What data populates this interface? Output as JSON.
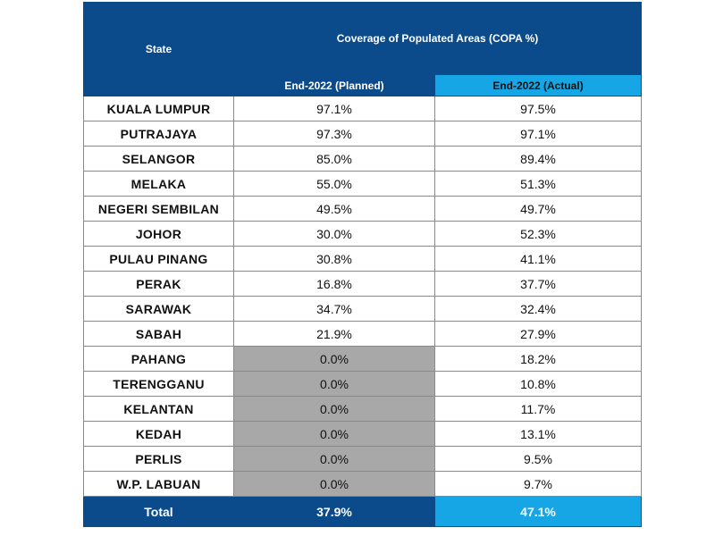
{
  "table": {
    "header": {
      "state": "State",
      "coverage": "Coverage of Populated Areas (COPA %)",
      "planned": "End-2022 (Planned)",
      "actual": "End-2022 (Actual)"
    },
    "rows": [
      [
        "KUALA LUMPUR",
        "97.1%",
        "97.5%"
      ],
      [
        "PUTRAJAYA",
        "97.3%",
        "97.1%"
      ],
      [
        "SELANGOR",
        "85.0%",
        "89.4%"
      ],
      [
        "MELAKA",
        "55.0%",
        "51.3%"
      ],
      [
        "NEGERI SEMBILAN",
        "49.5%",
        "49.7%"
      ],
      [
        "JOHOR",
        "30.0%",
        "52.3%"
      ],
      [
        "PULAU PINANG",
        "30.8%",
        "41.1%"
      ],
      [
        "PERAK",
        "16.8%",
        "37.7%"
      ],
      [
        "SARAWAK",
        "34.7%",
        "32.4%"
      ],
      [
        "SABAH",
        "21.9%",
        "27.9%"
      ],
      [
        "PAHANG",
        "0.0%",
        "18.2%"
      ],
      [
        "TERENGGANU",
        "0.0%",
        "10.8%"
      ],
      [
        "KELANTAN",
        "0.0%",
        "11.7%"
      ],
      [
        "KEDAH",
        "0.0%",
        "13.1%"
      ],
      [
        "PERLIS",
        "0.0%",
        "9.5%"
      ],
      [
        "W.P. LABUAN",
        "0.0%",
        "9.7%"
      ]
    ],
    "total": [
      "Total",
      "37.9%",
      "47.1%"
    ]
  }
}
